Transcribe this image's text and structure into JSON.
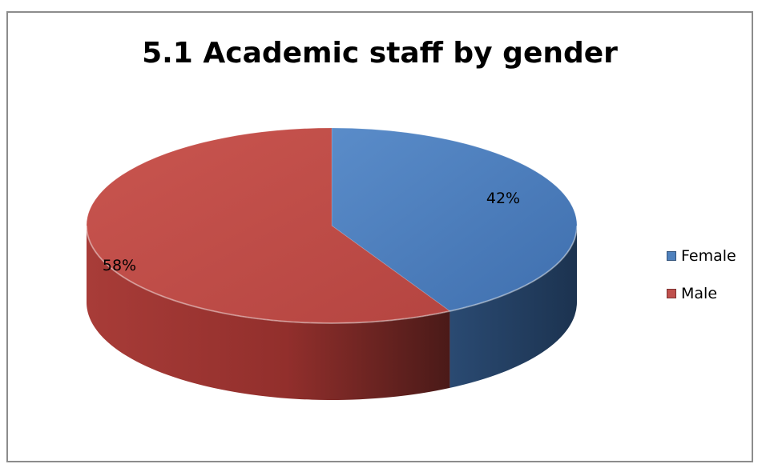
{
  "chart_data": {
    "type": "pie",
    "title": "5.1 Academic staff by gender",
    "categories": [
      "Female",
      "Male"
    ],
    "values": [
      42,
      58
    ],
    "data_labels": [
      "42%",
      "58%"
    ],
    "colors": {
      "Female": "#4f81bd",
      "Male": "#c0504d"
    },
    "style": "3d",
    "legend_position": "right"
  }
}
